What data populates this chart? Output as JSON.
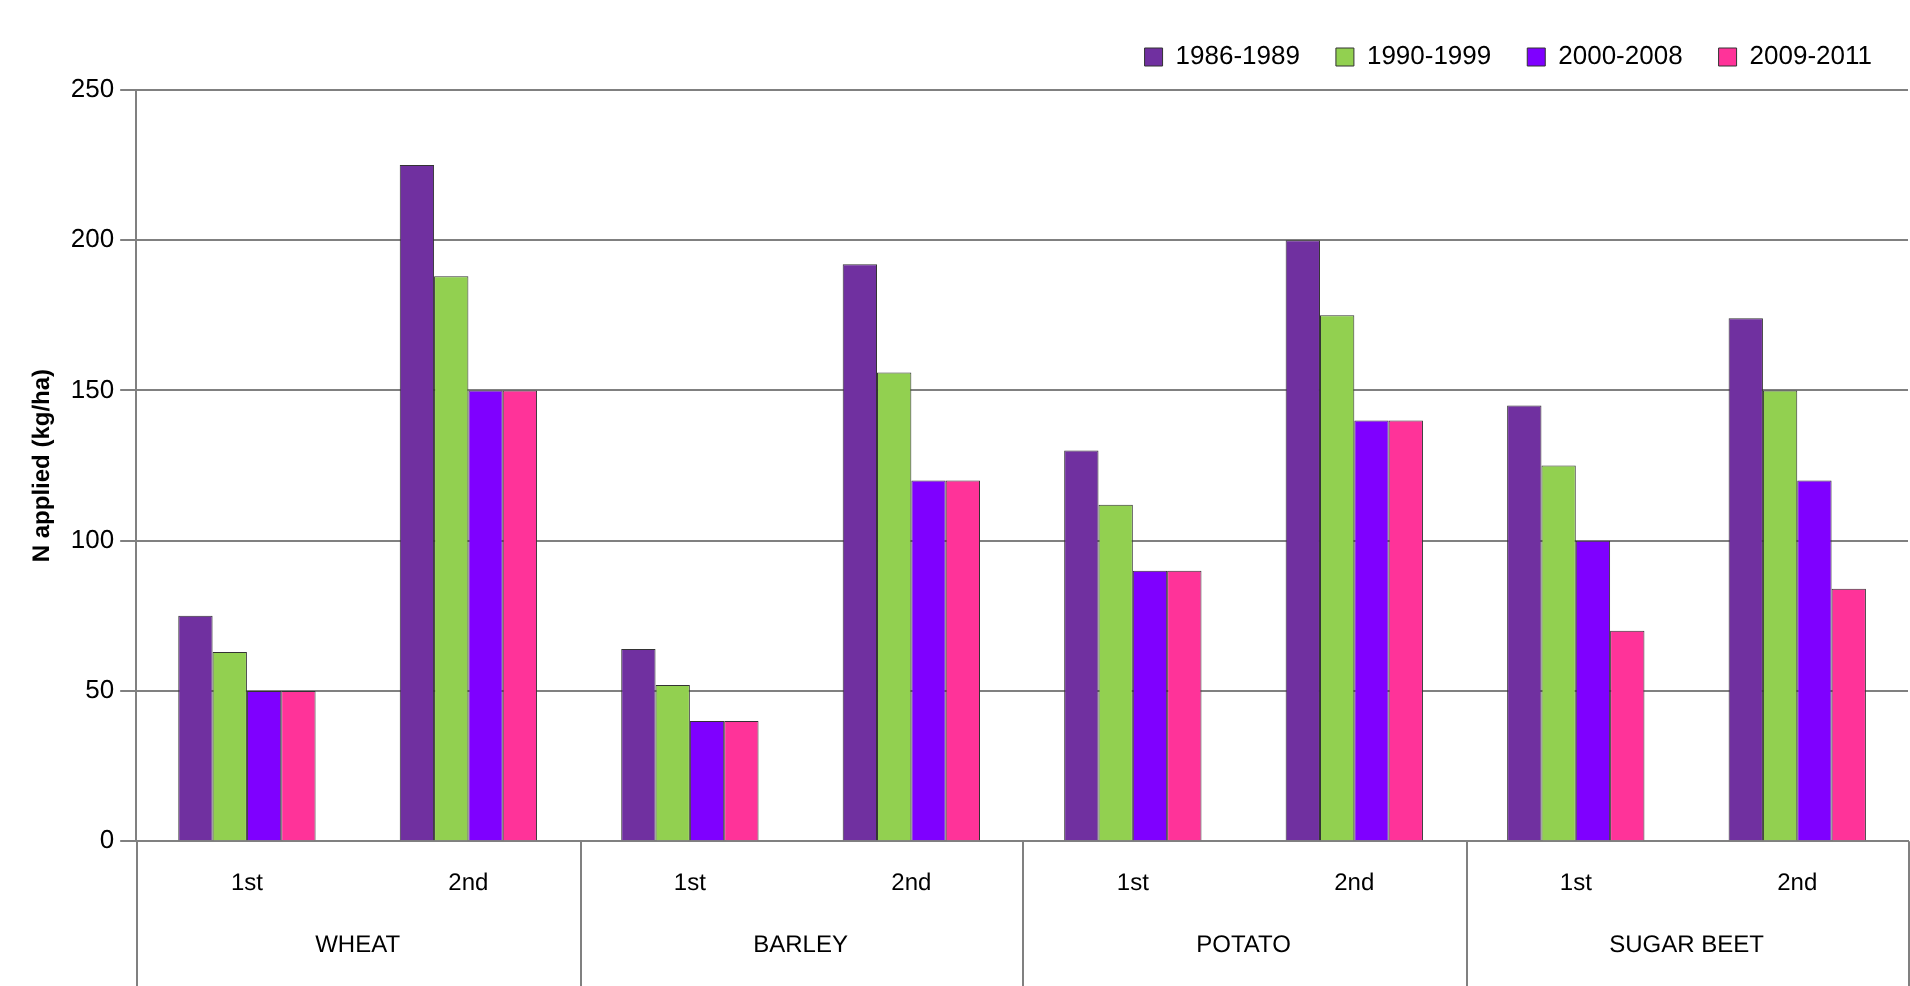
{
  "chart_data": {
    "type": "bar",
    "ylabel": "N applied (kg/ha)",
    "categories": [
      "1st",
      "2nd",
      "1st",
      "2nd",
      "1st",
      "2nd",
      "1st",
      "2nd"
    ],
    "annotations": [
      "WHEAT",
      "BARLEY",
      "POTATO",
      "SUGAR BEET"
    ],
    "series": [
      {
        "name": "1986-1989",
        "color": "#7030a0",
        "values": [
          75,
          225,
          64,
          192,
          130,
          200,
          145,
          174
        ]
      },
      {
        "name": "1990-1999",
        "color": "#92d050",
        "values": [
          63,
          188,
          52,
          156,
          112,
          175,
          125,
          150
        ]
      },
      {
        "name": "2000-2008",
        "color": "#7f00ff",
        "values": [
          50,
          150,
          40,
          120,
          90,
          140,
          100,
          120
        ]
      },
      {
        "name": "2009-2011",
        "color": "#ff3399",
        "values": [
          50,
          150,
          40,
          120,
          90,
          140,
          70,
          84
        ]
      }
    ],
    "ylim": [
      0,
      250
    ],
    "yticks": [
      0,
      50,
      100,
      150,
      200,
      250
    ],
    "grid": "y",
    "legend": "top right"
  }
}
